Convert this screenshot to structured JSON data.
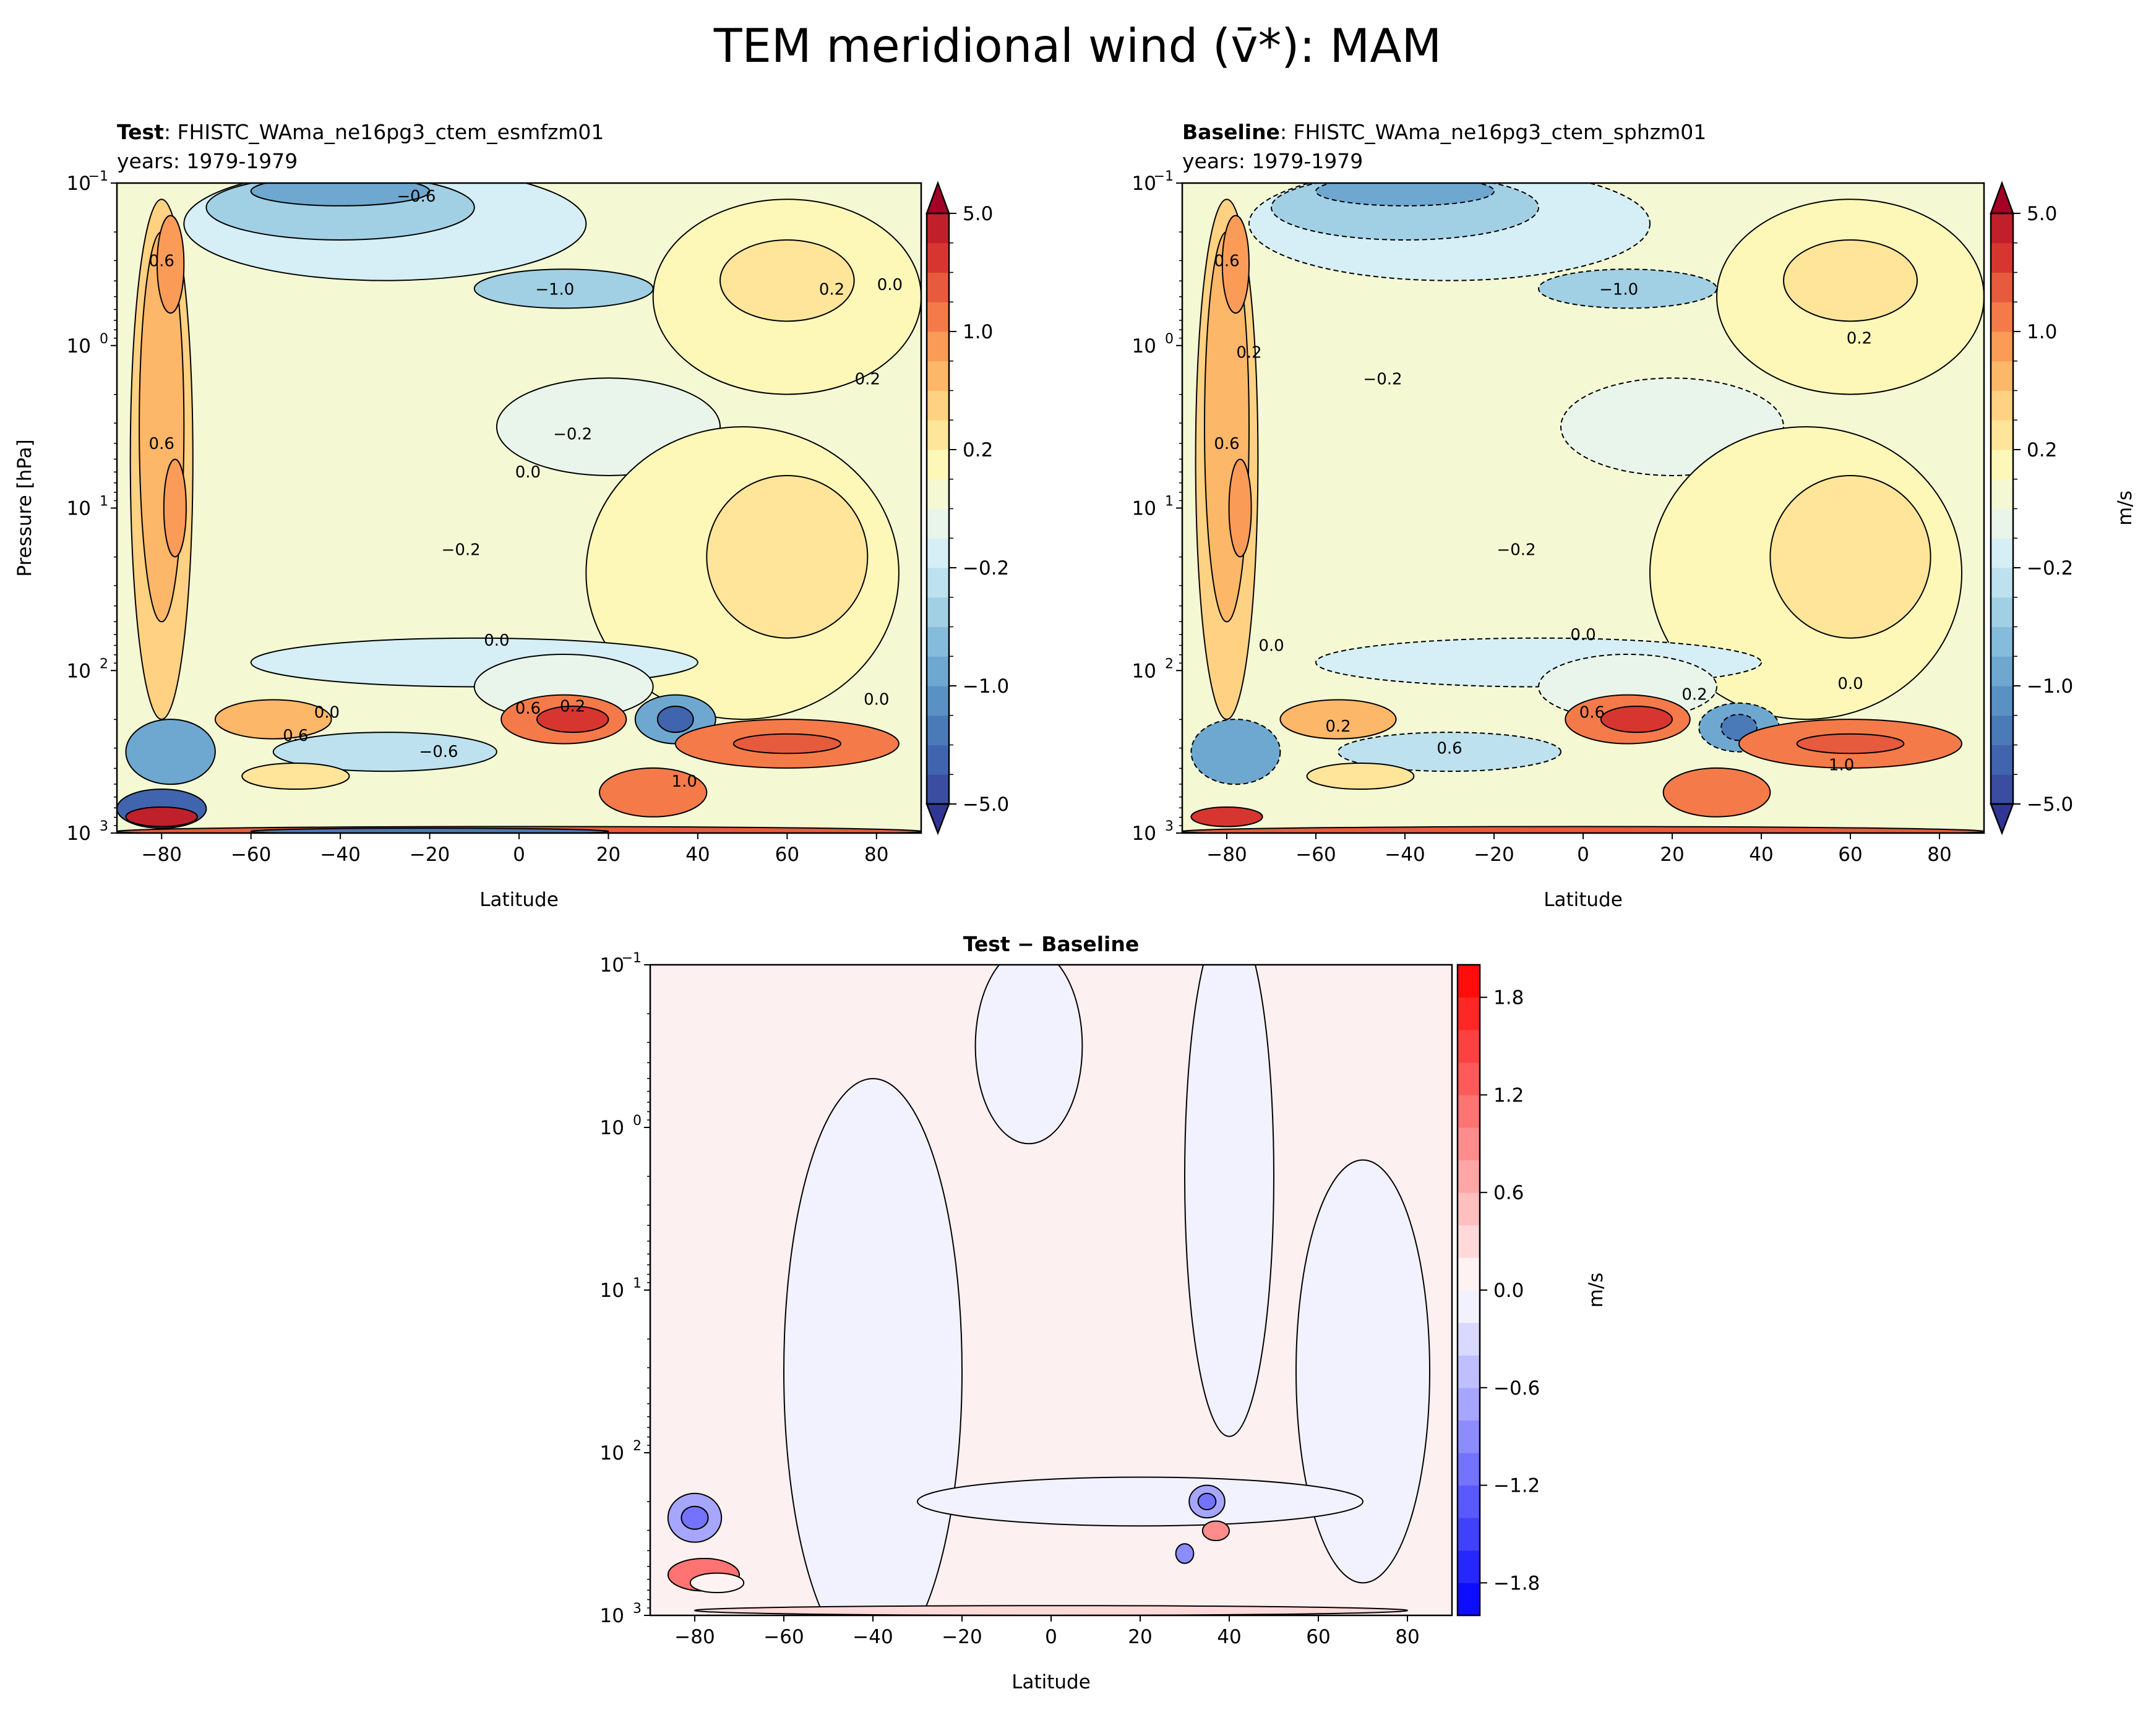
{
  "figure": {
    "title": "TEM meridional wind (v̄*): MAM"
  },
  "chart_data": [
    {
      "type": "heatmap",
      "subtype": "filled-contour",
      "panel": "test",
      "header_bold": "Test",
      "header_text": ": FHISTC_WAma_ne16pg3_ctem_esmfzm01",
      "subtitle": "years: 1979-1979",
      "xlabel": "Latitude",
      "ylabel": "Pressure [hPa]",
      "xlim": [
        -90,
        90
      ],
      "ylim": [
        1000,
        0.1
      ],
      "yscale": "log",
      "xticks": [
        "−80",
        "−60",
        "−40",
        "−20",
        "0",
        "20",
        "40",
        "60",
        "80"
      ],
      "yticks": [
        {
          "base": "10",
          "exp": "−1"
        },
        {
          "base": "10",
          "exp": "0"
        },
        {
          "base": "10",
          "exp": "1"
        },
        {
          "base": "10",
          "exp": "2"
        },
        {
          "base": "10",
          "exp": "3"
        }
      ],
      "colormap": "RdYlBu_r",
      "colorbar": {
        "label": "",
        "levels": [
          -5,
          -4,
          -3,
          -2,
          -1,
          -0.8,
          -0.6,
          -0.4,
          -0.2,
          -0.1,
          0,
          0.1,
          0.2,
          0.4,
          0.6,
          0.8,
          1,
          2,
          3,
          4,
          5
        ],
        "tick_labels": [
          "−5.0",
          "−1.0",
          "−0.2",
          "0.2",
          "1.0",
          "5.0"
        ],
        "extend": "both"
      },
      "contour_labels": [
        {
          "text": "0.6",
          "lat": -80,
          "p": 0.3
        },
        {
          "text": "0.6",
          "lat": -80,
          "p": 4
        },
        {
          "text": "−0.6",
          "lat": -23,
          "p": 0.12
        },
        {
          "text": "−1.0",
          "lat": 8,
          "p": 0.45
        },
        {
          "text": "0.2",
          "lat": 70,
          "p": 0.45
        },
        {
          "text": "0.0",
          "lat": 83,
          "p": 0.42
        },
        {
          "text": "0.2",
          "lat": 78,
          "p": 1.6
        },
        {
          "text": "−0.2",
          "lat": 12,
          "p": 3.5
        },
        {
          "text": "0.0",
          "lat": 2,
          "p": 6
        },
        {
          "text": "−0.2",
          "lat": -13,
          "p": 18
        },
        {
          "text": "0.0",
          "lat": -5,
          "p": 65
        },
        {
          "text": "0.0",
          "lat": 80,
          "p": 150
        },
        {
          "text": "0.6",
          "lat": 2,
          "p": 170
        },
        {
          "text": "0.2",
          "lat": 12,
          "p": 165
        },
        {
          "text": "−0.6",
          "lat": -18,
          "p": 315
        },
        {
          "text": "0.0",
          "lat": -43,
          "p": 180
        },
        {
          "text": "0.6",
          "lat": -50,
          "p": 250
        },
        {
          "text": "1.0",
          "lat": 37,
          "p": 480
        }
      ]
    },
    {
      "type": "heatmap",
      "subtype": "filled-contour",
      "panel": "baseline",
      "header_bold": "Baseline",
      "header_text": ": FHISTC_WAma_ne16pg3_ctem_sphzm01",
      "subtitle": "years: 1979-1979",
      "xlabel": "Latitude",
      "xlim": [
        -90,
        90
      ],
      "ylim": [
        1000,
        0.1
      ],
      "yscale": "log",
      "xticks": [
        "−80",
        "−60",
        "−40",
        "−20",
        "0",
        "20",
        "40",
        "60",
        "80"
      ],
      "yticks": [
        {
          "base": "10",
          "exp": "−1"
        },
        {
          "base": "10",
          "exp": "0"
        },
        {
          "base": "10",
          "exp": "1"
        },
        {
          "base": "10",
          "exp": "2"
        },
        {
          "base": "10",
          "exp": "3"
        }
      ],
      "colormap": "RdYlBu_r",
      "colorbar": {
        "label": "m/s",
        "levels": [
          -5,
          -4,
          -3,
          -2,
          -1,
          -0.8,
          -0.6,
          -0.4,
          -0.2,
          -0.1,
          0,
          0.1,
          0.2,
          0.4,
          0.6,
          0.8,
          1,
          2,
          3,
          4,
          5
        ],
        "tick_labels": [
          "−5.0",
          "−1.0",
          "−0.2",
          "0.2",
          "1.0",
          "5.0"
        ],
        "extend": "both"
      },
      "contour_labels": [
        {
          "text": "0.6",
          "lat": -80,
          "p": 0.3
        },
        {
          "text": "0.2",
          "lat": -75,
          "p": 1.1
        },
        {
          "text": "0.6",
          "lat": -80,
          "p": 4
        },
        {
          "text": "−0.2",
          "lat": -45,
          "p": 1.6
        },
        {
          "text": "−1.0",
          "lat": 8,
          "p": 0.45
        },
        {
          "text": "0.2",
          "lat": 62,
          "p": 0.9
        },
        {
          "text": "−0.2",
          "lat": -15,
          "p": 18
        },
        {
          "text": "0.0",
          "lat": -70,
          "p": 70
        },
        {
          "text": "0.0",
          "lat": 0,
          "p": 60
        },
        {
          "text": "0.0",
          "lat": 60,
          "p": 120
        },
        {
          "text": "0.2",
          "lat": 25,
          "p": 140
        },
        {
          "text": "0.6",
          "lat": 2,
          "p": 180
        },
        {
          "text": "0.2",
          "lat": -55,
          "p": 220
        },
        {
          "text": "0.6",
          "lat": -30,
          "p": 300
        },
        {
          "text": "1.0",
          "lat": 58,
          "p": 380
        }
      ]
    },
    {
      "type": "heatmap",
      "subtype": "filled-contour",
      "panel": "difference",
      "title": "Test − Baseline",
      "xlabel": "Latitude",
      "xlim": [
        -90,
        90
      ],
      "ylim": [
        1000,
        0.1
      ],
      "yscale": "log",
      "xticks": [
        "−80",
        "−60",
        "−40",
        "−20",
        "0",
        "20",
        "40",
        "60",
        "80"
      ],
      "yticks": [
        {
          "base": "10",
          "exp": "−1"
        },
        {
          "base": "10",
          "exp": "0"
        },
        {
          "base": "10",
          "exp": "1"
        },
        {
          "base": "10",
          "exp": "2"
        },
        {
          "base": "10",
          "exp": "3"
        }
      ],
      "colormap": "bwr",
      "colorbar": {
        "label": "m/s",
        "levels": [
          -2.0,
          -1.8,
          -1.6,
          -1.4,
          -1.2,
          -1.0,
          -0.8,
          -0.6,
          -0.4,
          -0.2,
          0.0,
          0.2,
          0.4,
          0.6,
          0.8,
          1.0,
          1.2,
          1.4,
          1.6,
          1.8,
          2.0
        ],
        "tick_labels": [
          "−1.8",
          "−1.2",
          "−0.6",
          "0.0",
          "0.6",
          "1.2",
          "1.8"
        ],
        "extend": "neither"
      }
    }
  ]
}
